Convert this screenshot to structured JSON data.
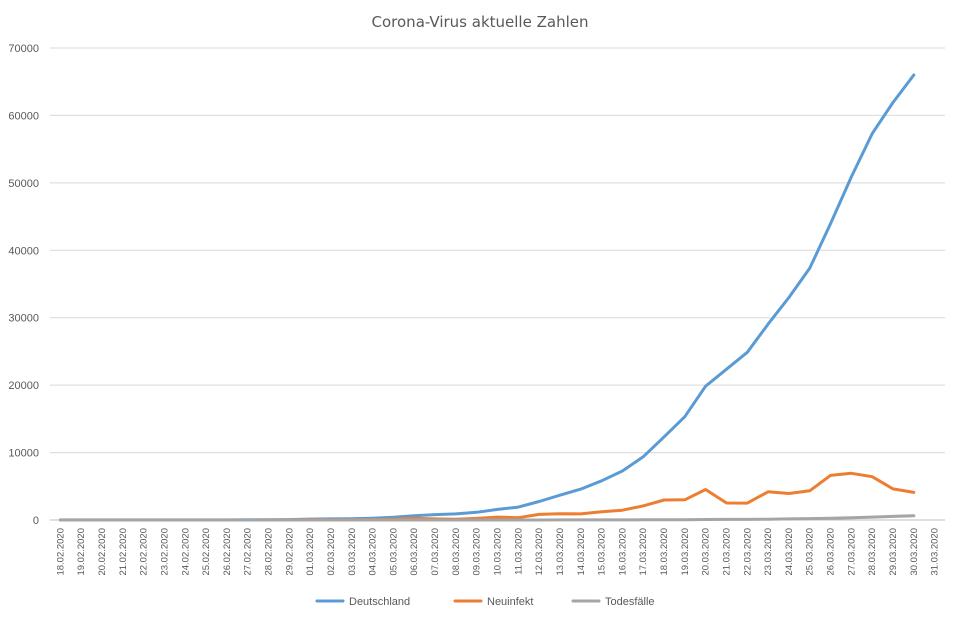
{
  "chart_data": {
    "type": "line",
    "title": "Corona-Virus aktuelle Zahlen",
    "xlabel": "",
    "ylabel": "",
    "ylim": [
      0,
      70000
    ],
    "yticks": [
      0,
      10000,
      20000,
      30000,
      40000,
      50000,
      60000,
      70000
    ],
    "grid": true,
    "legend_position": "bottom",
    "categories": [
      "18.02.2020",
      "19.02.2020",
      "20.02.2020",
      "21.02.2020",
      "22.02.2020",
      "23.02.2020",
      "24.02.2020",
      "25.02.2020",
      "26.02.2020",
      "27.02.2020",
      "28.02.2020",
      "29.02.2020",
      "01.03.2020",
      "02.03.2020",
      "03.03.2020",
      "04.03.2020",
      "05.03.2020",
      "06.03.2020",
      "07.03.2020",
      "08.03.2020",
      "09.03.2020",
      "10.03.2020",
      "11.03.2020",
      "12.03.2020",
      "13.03.2020",
      "14.03.2020",
      "15.03.2020",
      "16.03.2020",
      "17.03.2020",
      "18.03.2020",
      "19.03.2020",
      "20.03.2020",
      "21.03.2020",
      "22.03.2020",
      "23.03.2020",
      "24.03.2020",
      "25.03.2020",
      "26.03.2020",
      "27.03.2020",
      "28.03.2020",
      "29.03.2020",
      "30.03.2020",
      "31.03.2020"
    ],
    "series": [
      {
        "name": "Deutschland",
        "color": "#5b9bd5",
        "values": [
          16,
          16,
          16,
          16,
          16,
          16,
          16,
          18,
          21,
          26,
          48,
          66,
          130,
          159,
          196,
          262,
          400,
          639,
          795,
          902,
          1139,
          1567,
          1908,
          2745,
          3675,
          4585,
          5813,
          7272,
          9367,
          12327,
          15320,
          19848,
          22364,
          24873,
          29056,
          32991,
          37323,
          43938,
          50871,
          57298,
          61913,
          66000,
          null
        ]
      },
      {
        "name": "Neuinfekt",
        "color": "#ed7d31",
        "values": [
          0,
          0,
          0,
          0,
          0,
          0,
          0,
          2,
          3,
          5,
          22,
          18,
          64,
          29,
          37,
          66,
          138,
          239,
          156,
          107,
          237,
          428,
          341,
          837,
          930,
          910,
          1228,
          1459,
          2095,
          2960,
          2993,
          4528,
          2516,
          2509,
          4183,
          3935,
          4332,
          6615,
          6933,
          6427,
          4615,
          4087,
          null
        ]
      },
      {
        "name": "Todesfälle",
        "color": "#a5a5a5",
        "values": [
          0,
          0,
          0,
          0,
          0,
          0,
          0,
          0,
          0,
          0,
          0,
          0,
          0,
          0,
          0,
          0,
          0,
          0,
          0,
          0,
          2,
          2,
          3,
          5,
          8,
          11,
          13,
          17,
          24,
          28,
          44,
          67,
          84,
          94,
          123,
          157,
          206,
          267,
          342,
          433,
          533,
          645,
          null
        ]
      }
    ]
  }
}
